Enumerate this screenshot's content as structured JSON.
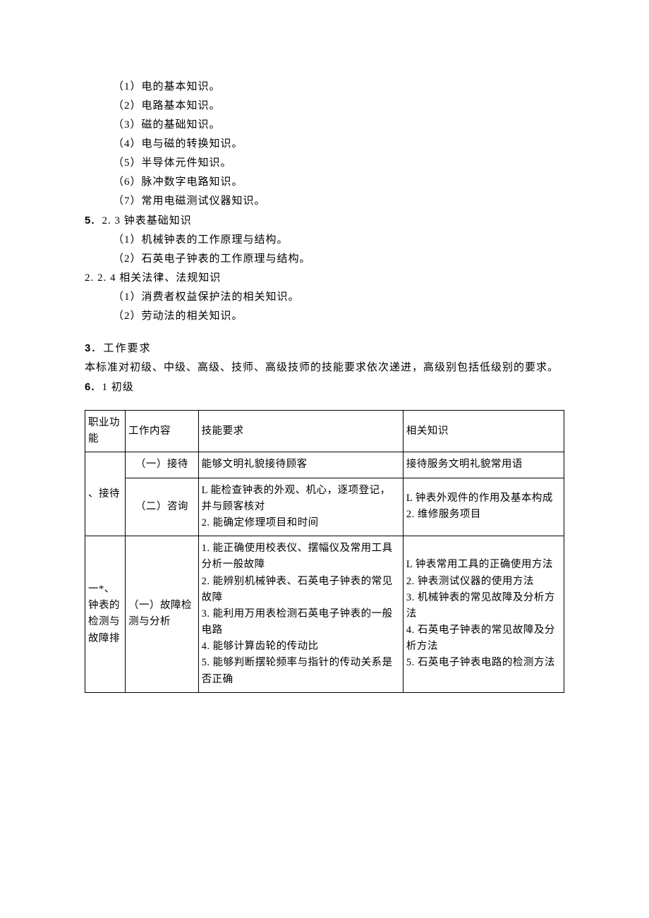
{
  "section_22_items": [
    "（1）电的基本知识。",
    "（2）电路基本知识。",
    "（3）磁的基础知识。",
    "（4）电与磁的转换知识。",
    "（5）半导体元件知识。",
    "（6）脉冲数字电路知识。",
    "（7）常用电磁测试仪器知识。"
  ],
  "heading_23": {
    "num": "5.",
    "text": "2. 3 钟表基础知识"
  },
  "section_23_items": [
    "（1）机械钟表的工作原理与结构。",
    "（2）石英电子钟表的工作原理与结构。"
  ],
  "heading_224": "2. 2. 4 相关法律、法规知识",
  "section_224_items": [
    "（1）消费者权益保护法的相关知识。",
    "（2）劳动法的相关知识。"
  ],
  "section_3": {
    "num": "3.",
    "title": "工作要求",
    "text": "本标准对初级、中级、高级、技师、高级技师的技能要求依次递进，高级别包括低级别的要求。"
  },
  "heading_31": {
    "num": "6.",
    "text": "1 初级"
  },
  "table": {
    "headers": {
      "col1": "职业功能",
      "col2": "工作内容",
      "col3": "技能要求",
      "col4": "相关知识"
    },
    "rows": [
      {
        "func": "、接待",
        "items": [
          {
            "work": "（一）接待",
            "skill": "能够文明礼貌接待顾客",
            "knowledge": "接待服务文明礼貌常用语"
          },
          {
            "work": "（二）咨询",
            "skill": "L 能检查钟表的外观、机心，逐项登记，并与顾客核对\n2. 能确定修理项目和时间",
            "knowledge": "L 钟表外观件的作用及基本构成\n2. 维修服务项目"
          }
        ]
      },
      {
        "func": "一*、钟表的检测与故障排",
        "items": [
          {
            "work": "（一）故障检测与分析",
            "skill": "1. 能正确使用校表仪、摆幅仪及常用工具分析一般故障\n2. 能辨别机械钟表、石英电子钟表的常见故障\n3. 能利用万用表检测石英电子钟表的一般电路\n4. 能够计算齿轮的传动比\n5. 能够判断摆轮频率与指针的传动关系是否正确",
            "knowledge": "L 钟表常用工具的正确使用方法\n2. 钟表测试仪器的使用方法\n3. 机械钟表的常见故障及分析方法\n4. 石英电子钟表的常见故障及分析方法\n5. 石英电子钟表电路的检测方法"
          }
        ]
      }
    ]
  }
}
